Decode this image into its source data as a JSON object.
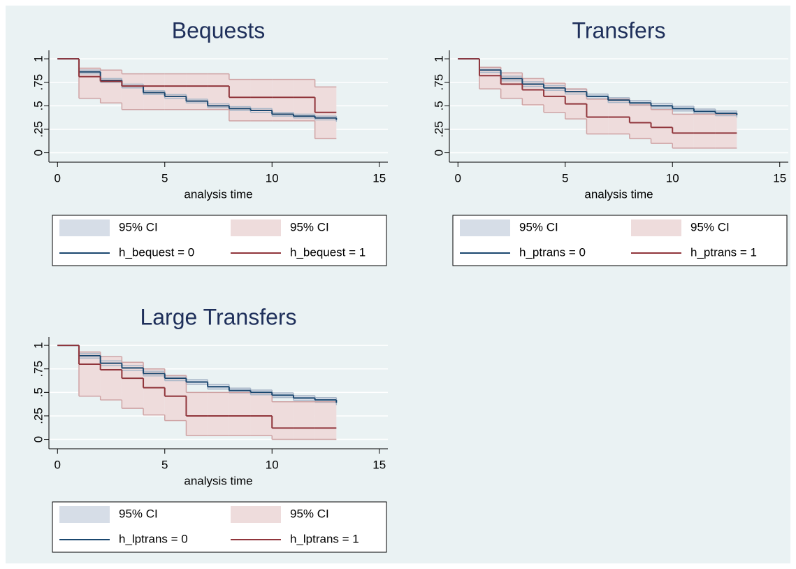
{
  "chart_data": [
    {
      "type": "step",
      "title": "Bequests",
      "xlabel": "analysis time",
      "x": [
        0,
        1,
        2,
        3,
        4,
        5,
        6,
        7,
        8,
        9,
        10,
        11,
        12,
        13
      ],
      "xlim": [
        -0.4,
        15.4
      ],
      "xticks": [
        0,
        5,
        10,
        15
      ],
      "ylim": [
        -0.1,
        1.09
      ],
      "yticks": [
        0,
        {
          "value": 0.25,
          "label": ".25"
        },
        {
          "value": 0.5,
          "label": ".5"
        },
        {
          "value": 0.75,
          "label": ".75"
        },
        1
      ],
      "grid": true,
      "ci": [
        {
          "name": "95% CI",
          "color": "#d6dde7",
          "stroke": "#a9b7c8",
          "lower": [
            1,
            0.84,
            0.75,
            0.69,
            0.62,
            0.58,
            0.53,
            0.48,
            0.45,
            0.43,
            0.39,
            0.37,
            0.35,
            0.33
          ],
          "upper": [
            1,
            0.88,
            0.79,
            0.73,
            0.66,
            0.62,
            0.57,
            0.52,
            0.49,
            0.47,
            0.43,
            0.41,
            0.39,
            0.37
          ]
        },
        {
          "name": "95% CI",
          "color": "#eedcdc",
          "stroke": "#cfa3a4",
          "lower": [
            1,
            0.58,
            0.53,
            0.46,
            0.46,
            0.46,
            0.46,
            0.46,
            0.34,
            0.34,
            0.34,
            0.34,
            0.15,
            0.15
          ],
          "upper": [
            1,
            0.9,
            0.88,
            0.84,
            0.84,
            0.84,
            0.84,
            0.84,
            0.78,
            0.78,
            0.78,
            0.78,
            0.7,
            0.7
          ]
        }
      ],
      "series": [
        {
          "name": "h_bequest = 0",
          "color": "#1a476f",
          "values": [
            1,
            0.86,
            0.77,
            0.71,
            0.64,
            0.6,
            0.55,
            0.5,
            0.47,
            0.45,
            0.41,
            0.39,
            0.37,
            0.35
          ]
        },
        {
          "name": "h_bequest = 1",
          "color": "#90353b",
          "values": [
            1,
            0.81,
            0.76,
            0.71,
            0.71,
            0.71,
            0.71,
            0.71,
            0.59,
            0.59,
            0.59,
            0.59,
            0.43,
            0.43
          ]
        }
      ]
    },
    {
      "type": "step",
      "title": "Transfers",
      "xlabel": "analysis time",
      "x": [
        0,
        1,
        2,
        3,
        4,
        5,
        6,
        7,
        8,
        9,
        10,
        11,
        12,
        13
      ],
      "xlim": [
        -0.4,
        15.4
      ],
      "xticks": [
        0,
        5,
        10,
        15
      ],
      "ylim": [
        -0.1,
        1.09
      ],
      "yticks": [
        0,
        {
          "value": 0.25,
          "label": ".25"
        },
        {
          "value": 0.5,
          "label": ".5"
        },
        {
          "value": 0.75,
          "label": ".75"
        },
        1
      ],
      "grid": true,
      "ci": [
        {
          "name": "95% CI",
          "color": "#d6dde7",
          "stroke": "#a9b7c8",
          "lower": [
            1,
            0.855,
            0.765,
            0.705,
            0.665,
            0.625,
            0.575,
            0.535,
            0.505,
            0.475,
            0.445,
            0.415,
            0.395,
            0.375
          ],
          "upper": [
            1,
            0.905,
            0.815,
            0.755,
            0.715,
            0.675,
            0.625,
            0.585,
            0.555,
            0.525,
            0.495,
            0.465,
            0.445,
            0.425
          ]
        },
        {
          "name": "95% CI",
          "color": "#eedcdc",
          "stroke": "#cfa3a4",
          "lower": [
            1,
            0.68,
            0.58,
            0.51,
            0.43,
            0.36,
            0.2,
            0.2,
            0.15,
            0.1,
            0.05,
            0.05,
            0.05,
            0.05
          ],
          "upper": [
            1,
            0.91,
            0.85,
            0.79,
            0.74,
            0.68,
            0.57,
            0.57,
            0.51,
            0.46,
            0.41,
            0.41,
            0.41,
            0.41
          ]
        }
      ],
      "series": [
        {
          "name": "h_ptrans = 0",
          "color": "#1a476f",
          "values": [
            1,
            0.88,
            0.79,
            0.73,
            0.69,
            0.65,
            0.6,
            0.56,
            0.53,
            0.5,
            0.47,
            0.44,
            0.42,
            0.4
          ]
        },
        {
          "name": "h_ptrans = 1",
          "color": "#90353b",
          "values": [
            1,
            0.82,
            0.73,
            0.67,
            0.6,
            0.52,
            0.38,
            0.38,
            0.32,
            0.27,
            0.21,
            0.21,
            0.21,
            0.21
          ]
        }
      ]
    },
    {
      "type": "step",
      "title": "Large Transfers",
      "xlabel": "analysis time",
      "x": [
        0,
        1,
        2,
        3,
        4,
        5,
        6,
        7,
        8,
        9,
        10,
        11,
        12,
        13
      ],
      "xlim": [
        -0.4,
        15.4
      ],
      "xticks": [
        0,
        5,
        10,
        15
      ],
      "ylim": [
        -0.1,
        1.09
      ],
      "yticks": [
        0,
        {
          "value": 0.25,
          "label": ".25"
        },
        {
          "value": 0.5,
          "label": ".5"
        },
        {
          "value": 0.75,
          "label": ".75"
        },
        1
      ],
      "grid": true,
      "ci": [
        {
          "name": "95% CI",
          "color": "#d6dde7",
          "stroke": "#a9b7c8",
          "lower": [
            1,
            0.865,
            0.785,
            0.735,
            0.675,
            0.625,
            0.585,
            0.535,
            0.495,
            0.475,
            0.445,
            0.415,
            0.395,
            0.365
          ],
          "upper": [
            1,
            0.915,
            0.835,
            0.785,
            0.725,
            0.675,
            0.635,
            0.585,
            0.545,
            0.525,
            0.495,
            0.465,
            0.445,
            0.415
          ]
        },
        {
          "name": "95% CI",
          "color": "#eedcdc",
          "stroke": "#cfa3a4",
          "lower": [
            1,
            0.46,
            0.42,
            0.33,
            0.26,
            0.2,
            0.04,
            0.04,
            0.04,
            0.04,
            0,
            0,
            0,
            0
          ],
          "upper": [
            1,
            0.93,
            0.88,
            0.82,
            0.75,
            0.68,
            0.5,
            0.5,
            0.5,
            0.5,
            0.4,
            0.4,
            0.4,
            0.4
          ]
        }
      ],
      "series": [
        {
          "name": "h_lptrans = 0",
          "color": "#1a476f",
          "values": [
            1,
            0.89,
            0.81,
            0.76,
            0.7,
            0.65,
            0.61,
            0.56,
            0.52,
            0.5,
            0.47,
            0.44,
            0.42,
            0.39
          ]
        },
        {
          "name": "h_lptrans = 1",
          "color": "#90353b",
          "values": [
            1,
            0.8,
            0.74,
            0.65,
            0.55,
            0.46,
            0.25,
            0.25,
            0.25,
            0.25,
            0.12,
            0.12,
            0.12,
            0.12
          ]
        }
      ]
    }
  ]
}
